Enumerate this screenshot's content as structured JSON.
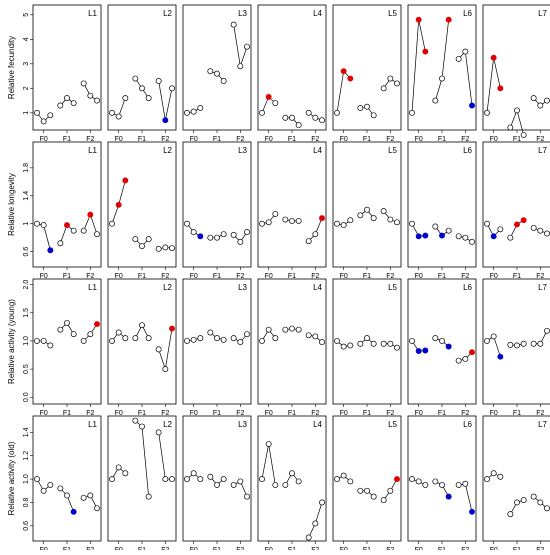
{
  "chart_data": [
    {
      "type": "line",
      "ylabel": "Relative fecundity",
      "ylim": [
        0.3,
        5.4
      ],
      "yticks": [
        1,
        2,
        3,
        4,
        5
      ],
      "x": [
        1,
        2,
        3,
        4.5,
        5.5,
        6.5,
        8,
        9,
        10
      ],
      "xlim": [
        0.4,
        10.6
      ],
      "xticks": [
        {
          "value": 2,
          "label": "F0"
        },
        {
          "value": 5.5,
          "label": "F1"
        },
        {
          "value": 9,
          "label": "F2"
        }
      ],
      "panels": [
        {
          "title": "L1",
          "values": [
            1.0,
            0.65,
            0.9,
            1.3,
            1.6,
            1.4,
            2.2,
            1.7,
            1.5
          ],
          "colors": [
            "#fff",
            "#fff",
            "#fff",
            "#fff",
            "#fff",
            "#fff",
            "#fff",
            "#fff",
            "#fff"
          ]
        },
        {
          "title": "L2",
          "values": [
            1.0,
            0.85,
            1.6,
            2.4,
            2.0,
            1.6,
            2.3,
            0.7,
            2.0
          ],
          "colors": [
            "#fff",
            "#fff",
            "#fff",
            "#fff",
            "#fff",
            "#fff",
            "#fff",
            "#0000cc",
            "#fff"
          ]
        },
        {
          "title": "L3",
          "values": [
            1.0,
            1.05,
            1.2,
            2.7,
            2.6,
            2.3,
            4.6,
            2.9,
            3.7
          ],
          "colors": [
            "#fff",
            "#fff",
            "#fff",
            "#fff",
            "#fff",
            "#fff",
            "#fff",
            "#fff",
            "#fff"
          ]
        },
        {
          "title": "L4",
          "values": [
            1.0,
            1.65,
            1.4,
            0.8,
            0.8,
            0.5,
            1.0,
            0.8,
            0.7
          ],
          "colors": [
            "#fff",
            "#e00000",
            "#fff",
            "#fff",
            "#fff",
            "#fff",
            "#fff",
            "#fff",
            "#fff"
          ]
        },
        {
          "title": "L5",
          "values": [
            1.0,
            2.7,
            2.4,
            1.2,
            1.25,
            0.9,
            2.0,
            2.4,
            2.2
          ],
          "colors": [
            "#fff",
            "#e00000",
            "#e00000",
            "#fff",
            "#fff",
            "#fff",
            "#fff",
            "#fff",
            "#fff"
          ]
        },
        {
          "title": "L6",
          "values": [
            1.0,
            4.8,
            3.5,
            1.5,
            2.4,
            4.8,
            3.2,
            3.5,
            1.3
          ],
          "colors": [
            "#fff",
            "#e00000",
            "#e00000",
            "#fff",
            "#fff",
            "#e00000",
            "#fff",
            "#fff",
            "#0000cc"
          ]
        },
        {
          "title": "L7",
          "values": [
            1.0,
            3.25,
            2.0,
            0.4,
            1.1,
            0.1,
            1.6,
            1.3,
            1.5
          ],
          "colors": [
            "#fff",
            "#e00000",
            "#e00000",
            "#fff",
            "#fff",
            "#fff",
            "#fff",
            "#fff",
            "#fff"
          ]
        }
      ]
    },
    {
      "type": "line",
      "ylabel": "Relative longevity",
      "ylim": [
        0.38,
        2.17
      ],
      "yticks": [
        0.6,
        1.0,
        1.4,
        1.8
      ],
      "x": [
        1,
        2,
        3,
        4.5,
        5.5,
        6.5,
        8,
        9,
        10
      ],
      "xlim": [
        0.4,
        10.6
      ],
      "xticks": [
        {
          "value": 2,
          "label": "F0"
        },
        {
          "value": 5.5,
          "label": "F1"
        },
        {
          "value": 9,
          "label": "F2"
        }
      ],
      "panels": [
        {
          "title": "L1",
          "values": [
            1.0,
            0.98,
            0.62,
            0.72,
            0.98,
            0.9,
            0.9,
            1.13,
            0.85
          ],
          "colors": [
            "#fff",
            "#fff",
            "#0000cc",
            "#fff",
            "#e00000",
            "#fff",
            "#fff",
            "#e00000",
            "#fff"
          ]
        },
        {
          "title": "L2",
          "values": [
            1.0,
            1.27,
            1.62,
            0.78,
            0.68,
            0.78,
            0.64,
            0.66,
            0.65
          ],
          "colors": [
            "#fff",
            "#e00000",
            "#e00000",
            "#fff",
            "#fff",
            "#fff",
            "#fff",
            "#fff",
            "#fff"
          ]
        },
        {
          "title": "L3",
          "values": [
            1.0,
            0.88,
            0.82,
            0.8,
            0.8,
            0.85,
            0.84,
            0.74,
            0.88
          ],
          "colors": [
            "#fff",
            "#fff",
            "#0000cc",
            "#fff",
            "#fff",
            "#fff",
            "#fff",
            "#fff",
            "#fff"
          ]
        },
        {
          "title": "L4",
          "values": [
            1.0,
            1.02,
            1.14,
            1.06,
            1.04,
            1.04,
            0.75,
            0.85,
            1.08
          ],
          "colors": [
            "#fff",
            "#fff",
            "#fff",
            "#fff",
            "#fff",
            "#fff",
            "#fff",
            "#fff",
            "#e00000"
          ]
        },
        {
          "title": "L5",
          "values": [
            1.0,
            0.98,
            1.05,
            1.12,
            1.2,
            1.08,
            1.18,
            1.06,
            1.02
          ],
          "colors": [
            "#fff",
            "#fff",
            "#fff",
            "#fff",
            "#fff",
            "#fff",
            "#fff",
            "#fff",
            "#fff"
          ]
        },
        {
          "title": "L6",
          "values": [
            1.0,
            0.82,
            0.83,
            0.96,
            0.83,
            0.9,
            0.82,
            0.8,
            0.74
          ],
          "colors": [
            "#fff",
            "#0000cc",
            "#0000cc",
            "#fff",
            "#0000cc",
            "#fff",
            "#fff",
            "#fff",
            "#fff"
          ]
        },
        {
          "title": "L7",
          "values": [
            1.0,
            0.82,
            0.92,
            0.8,
            0.99,
            1.05,
            0.94,
            0.9,
            0.86
          ],
          "colors": [
            "#fff",
            "#0000cc",
            "#fff",
            "#fff",
            "#e00000",
            "#e00000",
            "#fff",
            "#fff",
            "#fff"
          ]
        }
      ]
    },
    {
      "type": "line",
      "ylabel": "Relative activity (young)",
      "ylim": [
        -0.12,
        2.1
      ],
      "yticks": [
        {
          "value": 0,
          "label": "0.0"
        },
        0.5,
        {
          "value": 1,
          "label": "1.0"
        },
        1.5,
        {
          "value": 2,
          "label": "2.0"
        }
      ],
      "x": [
        1,
        2,
        3,
        4.5,
        5.5,
        6.5,
        8,
        9,
        10
      ],
      "xlim": [
        0.4,
        10.6
      ],
      "xticks": [
        {
          "value": 2,
          "label": "F0"
        },
        {
          "value": 5.5,
          "label": "F1"
        },
        {
          "value": 9,
          "label": "F2"
        }
      ],
      "panels": [
        {
          "title": "L1",
          "values": [
            1.0,
            1.0,
            0.92,
            1.2,
            1.32,
            1.12,
            1.0,
            1.12,
            1.3
          ],
          "colors": [
            "#fff",
            "#fff",
            "#fff",
            "#fff",
            "#fff",
            "#fff",
            "#fff",
            "#fff",
            "#e00000"
          ]
        },
        {
          "title": "L2",
          "values": [
            1.0,
            1.15,
            1.05,
            1.05,
            1.28,
            1.05,
            0.85,
            0.5,
            1.22
          ],
          "colors": [
            "#fff",
            "#fff",
            "#fff",
            "#fff",
            "#fff",
            "#fff",
            "#fff",
            "#fff",
            "#e00000"
          ]
        },
        {
          "title": "L3",
          "values": [
            1.0,
            1.02,
            1.05,
            1.15,
            1.05,
            1.02,
            1.05,
            0.98,
            1.12
          ],
          "colors": [
            "#fff",
            "#fff",
            "#fff",
            "#fff",
            "#fff",
            "#fff",
            "#fff",
            "#fff",
            "#fff"
          ]
        },
        {
          "title": "L4",
          "values": [
            1.0,
            1.2,
            1.05,
            1.2,
            1.22,
            1.2,
            1.1,
            1.08,
            0.98
          ],
          "colors": [
            "#fff",
            "#fff",
            "#fff",
            "#fff",
            "#fff",
            "#fff",
            "#fff",
            "#fff",
            "#fff"
          ]
        },
        {
          "title": "L5",
          "values": [
            1.0,
            0.9,
            0.92,
            0.95,
            1.05,
            0.95,
            0.95,
            0.95,
            0.88
          ],
          "colors": [
            "#fff",
            "#fff",
            "#fff",
            "#fff",
            "#fff",
            "#fff",
            "#fff",
            "#fff",
            "#fff"
          ]
        },
        {
          "title": "L6",
          "values": [
            1.0,
            0.82,
            0.83,
            1.05,
            1.0,
            0.9,
            0.65,
            0.68,
            0.8
          ],
          "colors": [
            "#fff",
            "#0000cc",
            "#0000cc",
            "#fff",
            "#fff",
            "#0000cc",
            "#fff",
            "#fff",
            "#e00000"
          ]
        },
        {
          "title": "L7",
          "values": [
            1.0,
            1.08,
            0.72,
            0.93,
            0.92,
            0.95,
            0.95,
            0.95,
            1.18
          ],
          "colors": [
            "#fff",
            "#fff",
            "#0000cc",
            "#fff",
            "#fff",
            "#fff",
            "#fff",
            "#fff",
            "#fff"
          ]
        }
      ]
    },
    {
      "type": "line",
      "ylabel": "Relative activity (old)",
      "ylim": [
        0.47,
        1.54
      ],
      "yticks": [
        0.6,
        0.8,
        {
          "value": 1,
          "label": "1.0"
        },
        1.2,
        1.4
      ],
      "x": [
        1,
        2,
        3,
        4.5,
        5.5,
        6.5,
        8,
        9,
        10
      ],
      "xlim": [
        0.4,
        10.6
      ],
      "xticks": [
        {
          "value": 2,
          "label": "F0"
        },
        {
          "value": 5.5,
          "label": "F1"
        },
        {
          "value": 9,
          "label": "F2"
        }
      ],
      "panels": [
        {
          "title": "L1",
          "values": [
            1.0,
            0.9,
            0.95,
            0.92,
            0.86,
            0.72,
            0.84,
            0.86,
            0.75
          ],
          "colors": [
            "#fff",
            "#fff",
            "#fff",
            "#fff",
            "#fff",
            "#0000cc",
            "#fff",
            "#fff",
            "#fff"
          ]
        },
        {
          "title": "L2",
          "values": [
            1.0,
            1.1,
            1.05,
            1.5,
            1.45,
            0.85,
            1.4,
            1.0,
            1.0
          ],
          "colors": [
            "#fff",
            "#fff",
            "#fff",
            "#fff",
            "#fff",
            "#fff",
            "#fff",
            "#fff",
            "#fff"
          ]
        },
        {
          "title": "L3",
          "values": [
            1.0,
            1.05,
            1.0,
            1.02,
            0.95,
            1.0,
            0.95,
            0.98,
            0.85
          ],
          "colors": [
            "#fff",
            "#fff",
            "#fff",
            "#fff",
            "#fff",
            "#fff",
            "#fff",
            "#fff",
            "#fff"
          ]
        },
        {
          "title": "L4",
          "values": [
            1.0,
            1.3,
            0.95,
            0.95,
            1.05,
            0.98,
            0.5,
            0.62,
            0.8
          ],
          "colors": [
            "#fff",
            "#fff",
            "#fff",
            "#fff",
            "#fff",
            "#fff",
            "#fff",
            "#fff",
            "#fff"
          ]
        },
        {
          "title": "L5",
          "values": [
            1.0,
            1.03,
            0.98,
            0.9,
            0.9,
            0.85,
            0.82,
            0.9,
            1.0
          ],
          "colors": [
            "#fff",
            "#fff",
            "#fff",
            "#fff",
            "#fff",
            "#fff",
            "#fff",
            "#fff",
            "#e00000"
          ]
        },
        {
          "title": "L6",
          "values": [
            1.0,
            0.98,
            0.95,
            0.98,
            0.95,
            0.85,
            0.95,
            0.96,
            0.72
          ],
          "colors": [
            "#fff",
            "#fff",
            "#fff",
            "#fff",
            "#fff",
            "#0000cc",
            "#fff",
            "#fff",
            "#0000cc"
          ]
        },
        {
          "title": "L7",
          "values": [
            1.0,
            1.05,
            1.02,
            0.7,
            0.8,
            0.82,
            0.85,
            0.8,
            0.75
          ],
          "colors": [
            "#fff",
            "#fff",
            "#fff",
            "#fff",
            "#fff",
            "#fff",
            "#fff",
            "#fff",
            "#fff"
          ]
        }
      ]
    }
  ]
}
